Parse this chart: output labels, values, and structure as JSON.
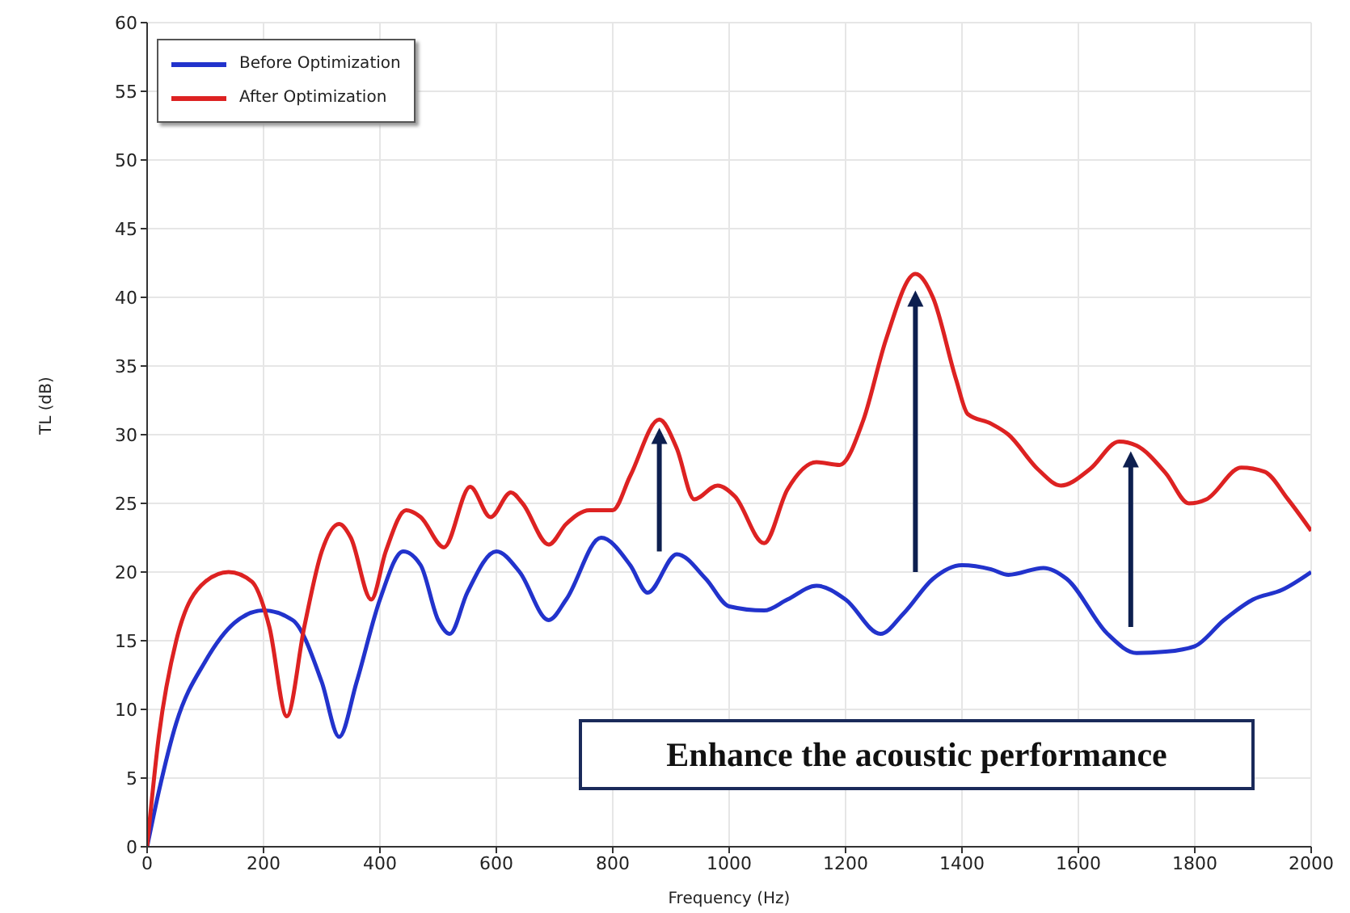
{
  "chart_data": {
    "type": "line",
    "xlabel": "Frequency (Hz)",
    "ylabel": "TL (dB)",
    "xlim": [
      0,
      2000
    ],
    "xticks": [
      0,
      200,
      400,
      600,
      800,
      1000,
      1200,
      1400,
      1600,
      1800,
      2000
    ],
    "ylim": [
      0,
      60
    ],
    "yticks": [
      0,
      5,
      10,
      15,
      20,
      25,
      30,
      35,
      40,
      45,
      50,
      55,
      60
    ],
    "grid": true,
    "legend": "top left",
    "annotations": [
      "Enhance the acoustic performance"
    ],
    "series": [
      {
        "name": "Before Optimization",
        "color": "#2233cc",
        "x": [
          0,
          20,
          50,
          100,
          150,
          200,
          250,
          300,
          330,
          360,
          400,
          440,
          470,
          500,
          520,
          550,
          600,
          640,
          690,
          720,
          780,
          830,
          860,
          910,
          960,
          1000,
          1060,
          1100,
          1150,
          1200,
          1260,
          1300,
          1350,
          1400,
          1450,
          1480,
          1540,
          1580,
          1650,
          1700,
          1750,
          1800,
          1850,
          1900,
          1950,
          2000
        ],
        "values": [
          0,
          4,
          9,
          13.5,
          16.3,
          17.2,
          16.5,
          12,
          8,
          12,
          18,
          21.5,
          20.5,
          16.5,
          15.5,
          18.5,
          21.5,
          20,
          16.5,
          18,
          22.5,
          20.5,
          18.5,
          21.3,
          19.5,
          17.5,
          17.2,
          18,
          19,
          18,
          15.5,
          17,
          19.5,
          20.5,
          20.2,
          19.8,
          20.3,
          19.5,
          15.5,
          14.1,
          14.2,
          14.6,
          16.5,
          18,
          18.7,
          20
        ]
      },
      {
        "name": "After Optimization",
        "color": "#dd2222",
        "x": [
          0,
          20,
          50,
          100,
          140,
          180,
          210,
          240,
          270,
          300,
          330,
          350,
          385,
          410,
          445,
          470,
          510,
          555,
          590,
          625,
          645,
          690,
          720,
          760,
          800,
          830,
          880,
          910,
          940,
          980,
          1010,
          1060,
          1100,
          1150,
          1190,
          1230,
          1270,
          1320,
          1350,
          1390,
          1410,
          1450,
          1480,
          1530,
          1570,
          1620,
          1670,
          1700,
          1750,
          1790,
          1820,
          1880,
          1920,
          1960,
          2000
        ],
        "values": [
          0,
          8,
          15,
          19.3,
          20,
          19.3,
          16,
          9.5,
          16,
          21.5,
          23.5,
          22.5,
          18,
          21.5,
          24.5,
          24,
          21.8,
          26.2,
          24,
          25.8,
          25,
          22,
          23.5,
          24.5,
          24.5,
          27,
          31.1,
          29,
          25.3,
          26.3,
          25.5,
          22.1,
          26,
          28,
          27.8,
          31,
          37,
          41.7,
          40,
          34,
          31.5,
          30.8,
          30,
          27.5,
          26.3,
          27.5,
          29.5,
          29.2,
          27.2,
          25,
          25.3,
          27.6,
          27.3,
          25.3,
          23
        ]
      }
    ]
  }
}
